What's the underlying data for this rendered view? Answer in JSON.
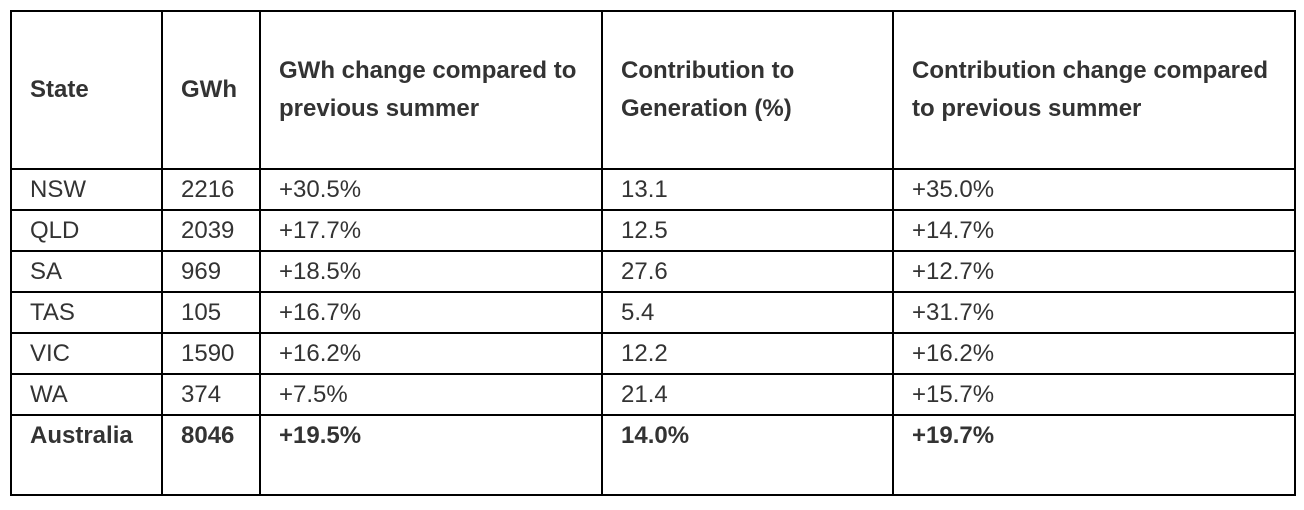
{
  "table": {
    "headers": [
      "State",
      "GWh",
      "GWh change compared to previous summer",
      "Contribution to Generation (%)",
      "Contribution change compared to previous summer"
    ],
    "rows": [
      [
        "NSW",
        "2216",
        "+30.5%",
        "13.1",
        "+35.0%"
      ],
      [
        "QLD",
        "2039",
        "+17.7%",
        "12.5",
        "+14.7%"
      ],
      [
        "SA",
        "969",
        "+18.5%",
        "27.6",
        "+12.7%"
      ],
      [
        "TAS",
        "105",
        "+16.7%",
        "5.4",
        "+31.7%"
      ],
      [
        "VIC",
        "1590",
        "+16.2%",
        "12.2",
        "+16.2%"
      ],
      [
        "WA",
        "374",
        "+7.5%",
        "21.4",
        "+15.7%"
      ]
    ],
    "total": [
      "Australia",
      "8046",
      "+19.5%",
      "14.0%",
      "+19.7%"
    ]
  }
}
